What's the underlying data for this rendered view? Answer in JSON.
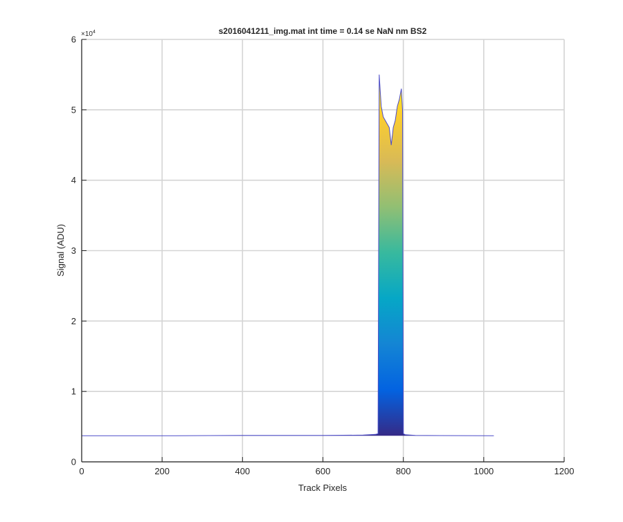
{
  "chart_data": {
    "type": "area",
    "title": "s2016041211_img.mat int time = 0.14 se  NaN nm BS2",
    "xlabel": "Track Pixels",
    "ylabel": "Signal (ADU)",
    "y_exponent_label": "×10",
    "y_exponent_power": "4",
    "xlim": [
      0,
      1200
    ],
    "ylim": [
      0,
      60000
    ],
    "x_ticks": [
      0,
      200,
      400,
      600,
      800,
      1000,
      1200
    ],
    "x_tick_labels": [
      "0",
      "200",
      "400",
      "600",
      "800",
      "1000",
      "1200"
    ],
    "y_ticks": [
      0,
      10000,
      20000,
      30000,
      40000,
      50000,
      60000
    ],
    "y_tick_labels": [
      "0",
      "1",
      "2",
      "3",
      "4",
      "5",
      "6"
    ],
    "grid": true,
    "colormap": [
      "#352a87",
      "#0363e1",
      "#1485d4",
      "#06a7c6",
      "#38b99e",
      "#92bf73",
      "#d9ba56",
      "#fcce2e",
      "#f9fb0e"
    ],
    "baseline_color": "#4b4bc8",
    "series": [
      {
        "x": [
          0,
          200,
          400,
          600,
          700,
          730,
          737,
          740,
          745,
          750,
          760,
          765,
          770,
          775,
          780,
          785,
          790,
          795,
          798,
          800,
          805,
          830,
          1025
        ],
        "y": [
          3700,
          3700,
          3750,
          3750,
          3800,
          3900,
          4000,
          55000,
          50500,
          49000,
          48000,
          47500,
          45000,
          47500,
          48500,
          50500,
          51500,
          53000,
          50000,
          4000,
          3850,
          3750,
          3700
        ]
      }
    ]
  }
}
